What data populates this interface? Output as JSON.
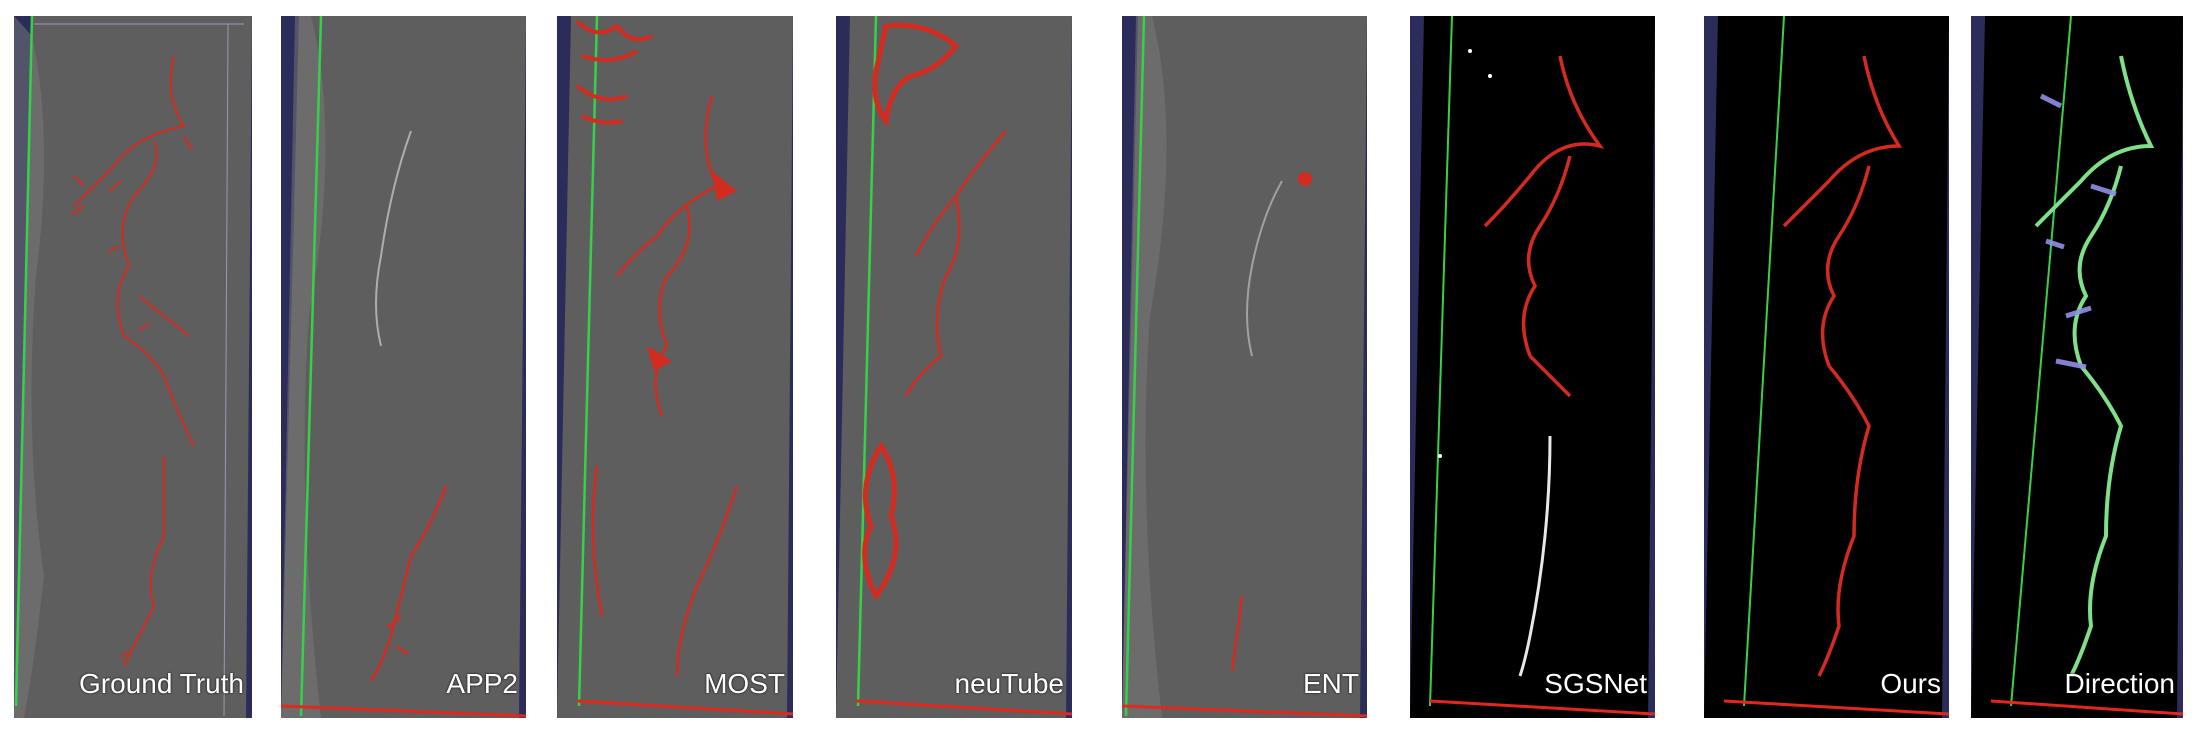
{
  "panels": [
    {
      "label": "Ground Truth",
      "style": "gray",
      "overlay": "trace-red"
    },
    {
      "label": "APP2",
      "style": "gray",
      "overlay": "app2-red"
    },
    {
      "label": "MOST",
      "style": "gray",
      "overlay": "most-red"
    },
    {
      "label": "neuTube",
      "style": "gray",
      "overlay": "neutube-red"
    },
    {
      "label": "ENT",
      "style": "gray",
      "overlay": "ent-red"
    },
    {
      "label": "SGSNet",
      "style": "black",
      "overlay": "sgsnet-red-white"
    },
    {
      "label": "Ours",
      "style": "black",
      "overlay": "ours-red"
    },
    {
      "label": "Direction",
      "style": "black",
      "overlay": "direction-green-blue"
    }
  ],
  "colors": {
    "trace": "#d42b20",
    "direction_main": "#7fe08a",
    "direction_branch": "#8f8fe6",
    "volume_gray": "#5c5c5c",
    "volume_black": "#000000",
    "frame_blue": "#2c2c5a",
    "axis_green": "#36d14a",
    "axis_red": "#e0281e"
  }
}
